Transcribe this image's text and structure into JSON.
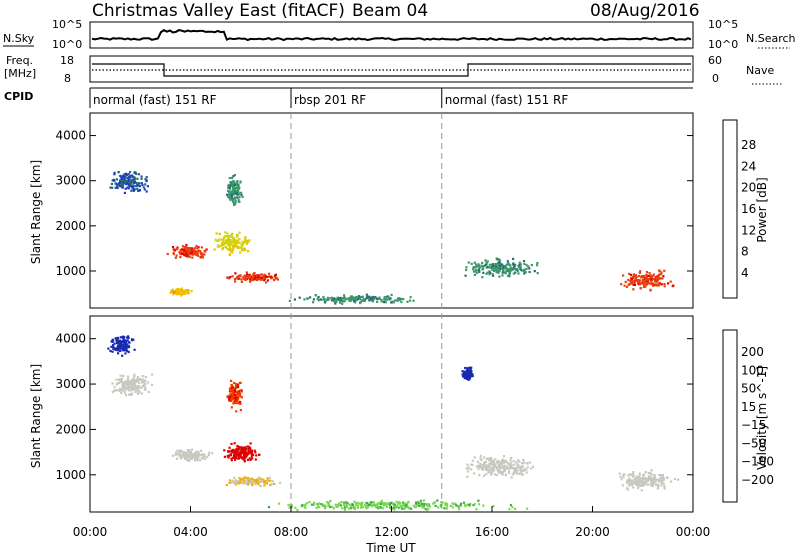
{
  "header": {
    "station": "Christmas Valley East (fitACF)",
    "beam": "Beam 04",
    "date": "08/Aug/2016"
  },
  "strip_labels": {
    "nsky": "N.Sky",
    "nsearch": "N.Search",
    "freq_line1": "Freq.",
    "freq_line2": "[MHz]",
    "nave": "Nave",
    "cpid": "CPID"
  },
  "strip_ticks": {
    "nsky_top": "10^5",
    "nsky_bottom": "10^0",
    "nsearch_top": "10^5",
    "nsearch_bottom": "10^0",
    "freq_top": "18",
    "freq_bottom": "8",
    "nave_top": "60",
    "nave_bottom": "0"
  },
  "cpid_segments": [
    {
      "label": "normal (fast) 151 RF",
      "start_h": 0
    },
    {
      "label": "rbsp 201 RF",
      "start_h": 8
    },
    {
      "label": "normal (fast) 151 RF",
      "start_h": 14
    }
  ],
  "colorbars": {
    "power": {
      "label": "Power [dB]",
      "ticks": [
        "28",
        "24",
        "20",
        "16",
        "12",
        "8",
        "4"
      ],
      "colors": [
        "#0000ff",
        "#1a3fbf",
        "#2a6a7a",
        "#3c9a6a",
        "#7fc84a",
        "#c8d818",
        "#f0c000",
        "#f08c00",
        "#e84010",
        "#e00000"
      ]
    },
    "velocity": {
      "label": "Velocity [m s^-1]",
      "ticks": [
        "200",
        "100",
        "50",
        "15",
        "−15",
        "−50",
        "−100",
        "−200"
      ],
      "colors": [
        "#1a2ab0",
        "#2e6a4a",
        "#3aa848",
        "#7cd850",
        "#c8c8c0",
        "#c8c8c0",
        "#f0b000",
        "#f08c00",
        "#f04000",
        "#e00000"
      ]
    }
  },
  "chart_data": [
    {
      "type": "heatmap",
      "name": "Power",
      "ylabel": "Slant Range [km]",
      "xlim_hours": [
        0,
        24
      ],
      "ylim_km": [
        180,
        4500
      ],
      "yticks": [
        "1000",
        "2000",
        "3000",
        "4000"
      ],
      "value_label": "Power [dB]",
      "value_range": [
        0,
        30
      ],
      "blobs": [
        {
          "t_h": 3.9,
          "r_km": 1450,
          "dt": 0.9,
          "dr": 180,
          "value": 26
        },
        {
          "t_h": 5.6,
          "r_km": 1650,
          "dt": 0.9,
          "dr": 300,
          "value": 18
        },
        {
          "t_h": 6.4,
          "r_km": 880,
          "dt": 1.4,
          "dr": 130,
          "value": 26
        },
        {
          "t_h": 5.7,
          "r_km": 2800,
          "dt": 0.4,
          "dr": 400,
          "value": 10
        },
        {
          "t_h": 1.5,
          "r_km": 3000,
          "dt": 1.0,
          "dr": 300,
          "value": 6
        },
        {
          "t_h": 3.6,
          "r_km": 560,
          "dt": 0.5,
          "dr": 100,
          "value": 20
        },
        {
          "t_h": 16.3,
          "r_km": 1100,
          "dt": 1.8,
          "dr": 250,
          "value": 10
        },
        {
          "t_h": 22.1,
          "r_km": 800,
          "dt": 1.4,
          "dr": 250,
          "value": 26
        },
        {
          "t_h": 10.6,
          "r_km": 400,
          "dt": 3.0,
          "dr": 120,
          "value": 10
        }
      ]
    },
    {
      "type": "heatmap",
      "name": "Velocity",
      "ylabel": "Slant Range [km]",
      "xlim_hours": [
        0,
        24
      ],
      "ylim_km": [
        180,
        4500
      ],
      "yticks": [
        "1000",
        "2000",
        "3000",
        "4000"
      ],
      "value_label": "Velocity [m s^-1]",
      "value_range": [
        -200,
        200
      ],
      "blobs": [
        {
          "t_h": 4.0,
          "r_km": 1450,
          "dt": 1.0,
          "dr": 180,
          "value": 0
        },
        {
          "t_h": 6.0,
          "r_km": 1500,
          "dt": 0.9,
          "dr": 250,
          "value": 200
        },
        {
          "t_h": 6.4,
          "r_km": 880,
          "dt": 1.3,
          "dr": 130,
          "value": 40
        },
        {
          "t_h": 5.7,
          "r_km": 2800,
          "dt": 0.4,
          "dr": 400,
          "value": 150
        },
        {
          "t_h": 1.6,
          "r_km": 3000,
          "dt": 1.0,
          "dr": 300,
          "value": 0
        },
        {
          "t_h": 1.2,
          "r_km": 3900,
          "dt": 0.6,
          "dr": 300,
          "value": -200
        },
        {
          "t_h": 15.0,
          "r_km": 3250,
          "dt": 0.3,
          "dr": 200,
          "value": -200
        },
        {
          "t_h": 16.3,
          "r_km": 1200,
          "dt": 1.8,
          "dr": 300,
          "value": 0
        },
        {
          "t_h": 22.1,
          "r_km": 900,
          "dt": 1.5,
          "dr": 250,
          "value": 0
        },
        {
          "t_h": 12.0,
          "r_km": 350,
          "dt": 6.0,
          "dr": 130,
          "value": -70
        }
      ]
    }
  ],
  "xaxis": {
    "label": "Time UT",
    "ticks": [
      "00:00",
      "04:00",
      "08:00",
      "12:00",
      "16:00",
      "20:00",
      "00:00"
    ]
  }
}
